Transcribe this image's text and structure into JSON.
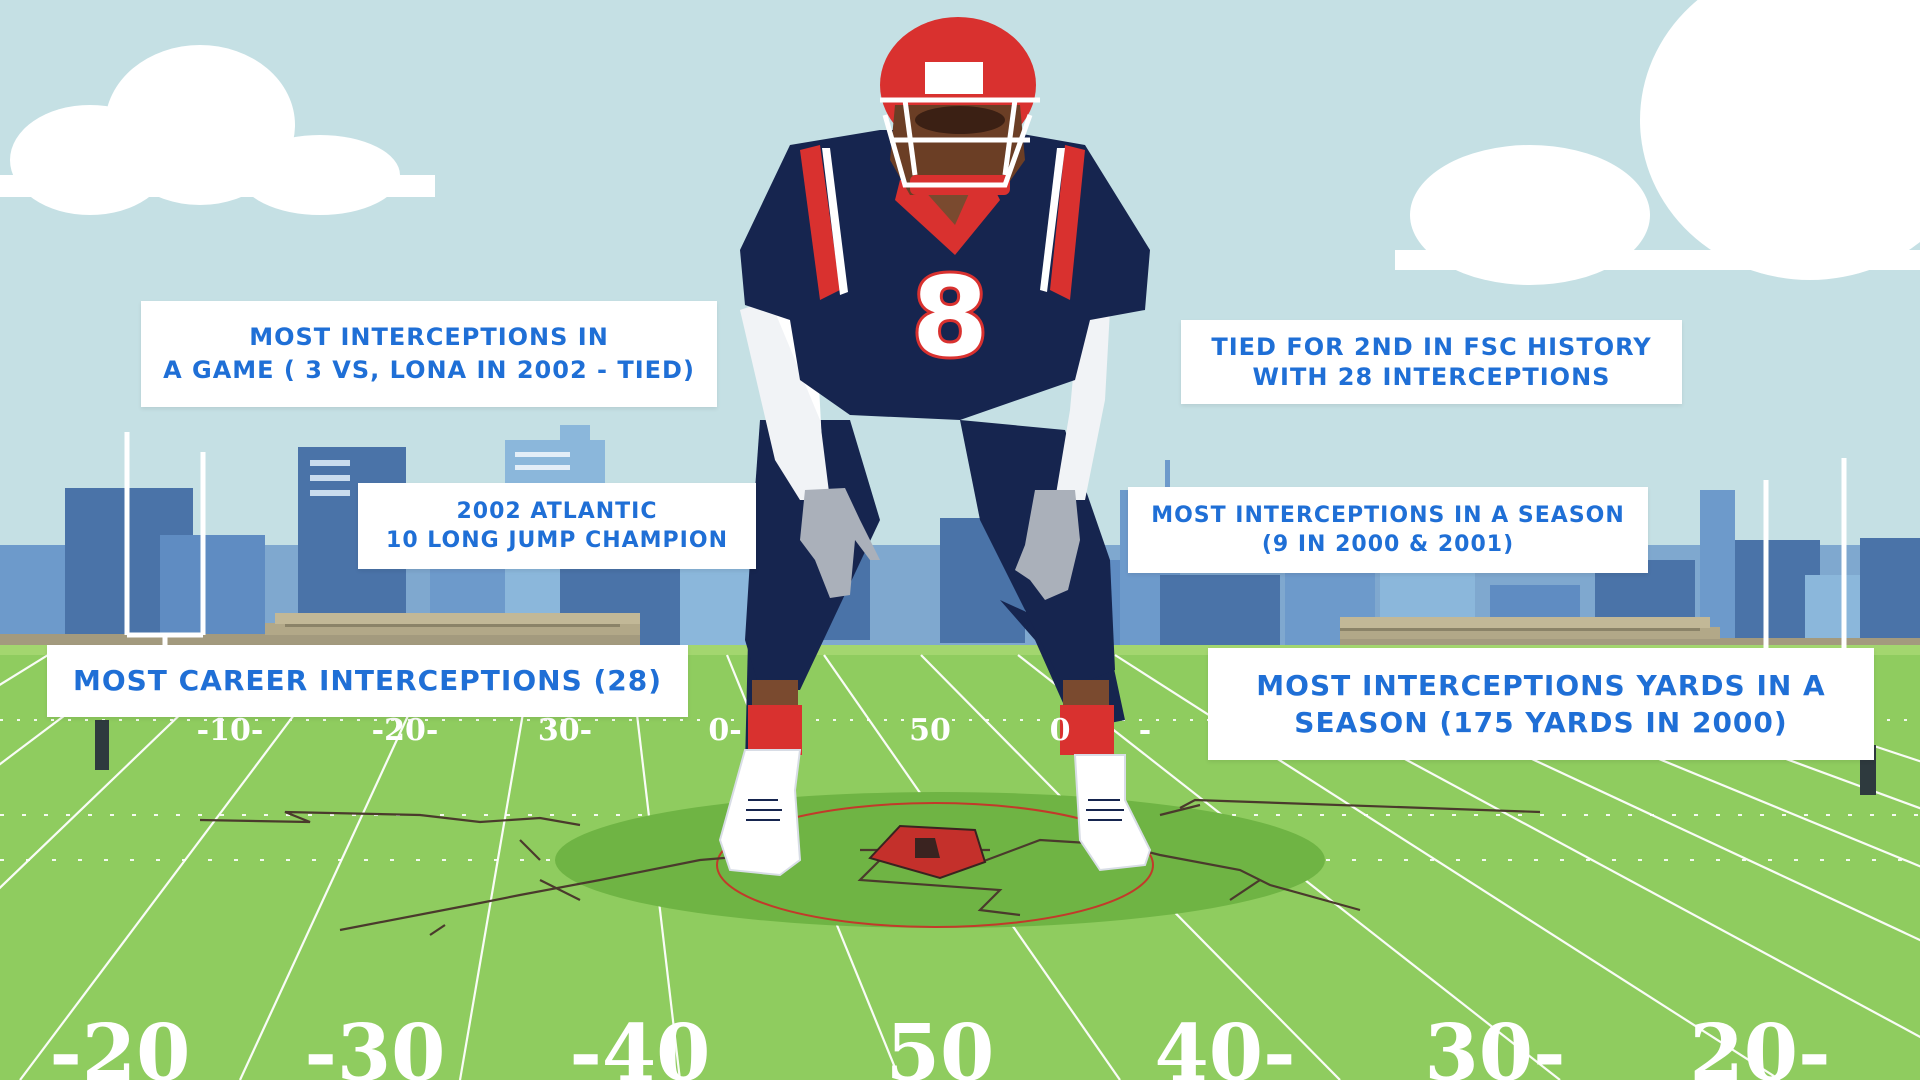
{
  "colors": {
    "sky": "#c5e0e4",
    "field": "#8fcc5f",
    "jersey_navy": "#16254f",
    "jersey_red": "#d9312f",
    "card_text": "#1f6fd6"
  },
  "figure": {
    "jersey_number": "8"
  },
  "field_numbers": {
    "far": [
      "-10-",
      "-20-",
      "30-",
      "0-",
      "50",
      "0",
      "-"
    ],
    "near": [
      "-20",
      "-30",
      "-40",
      "50",
      "40-",
      "30-",
      "20-"
    ]
  },
  "cards": {
    "top_left": {
      "line1": "MOST INTERCEPTIONS IN",
      "line2": "A GAME ( 3 VS, LONA IN 2002 - TIED)"
    },
    "mid_left": {
      "line1": "2002 ATLANTIC",
      "line2": "10 LONG JUMP CHAMPION"
    },
    "bottom_left": {
      "line1": "MOST CAREER INTERCEPTIONS (28)"
    },
    "top_right": {
      "line1": "TIED FOR 2ND IN FSC HISTORY",
      "line2": "WITH 28 INTERCEPTIONS"
    },
    "mid_right": {
      "line1": "MOST INTERCEPTIONS IN A SEASON",
      "line2": "(9 IN 2000 & 2001)"
    },
    "bottom_right": {
      "line1": "MOST INTERCEPTIONS YARDS IN A",
      "line2": "SEASON (175 YARDS IN 2000)"
    }
  }
}
